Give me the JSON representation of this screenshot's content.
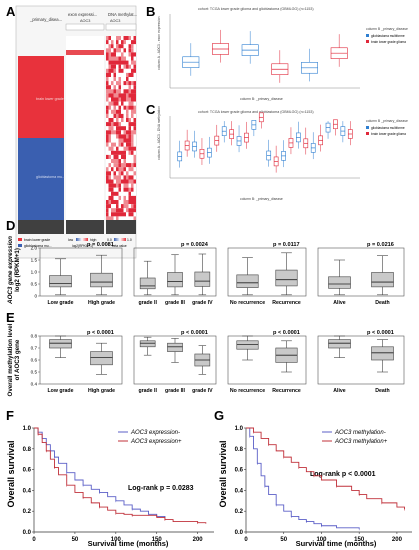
{
  "panels": {
    "A": {
      "letter": "A",
      "col_headers": [
        "_primary_disea...",
        "exon expressi...",
        "DNA methylat..."
      ],
      "gene": "AOC3",
      "group_labels": [
        "brain lower grade...",
        "glioblastoma mu..."
      ],
      "legend_items": [
        "brain lower grade",
        "glioblastoma mu..."
      ],
      "scale_expr": {
        "low": "low",
        "high": "high",
        "unit": "log2(RPKM+1)"
      },
      "scale_meth": {
        "min": "0.0",
        "max": "1.0",
        "unit": "beta value"
      },
      "colors": {
        "lgg": "#e8323c",
        "gbm": "#3a5fb0",
        "meth_high": "#e0283a",
        "meth_low": "#f4c2c5",
        "none": "#404040"
      }
    },
    "B": {
      "letter": "B",
      "title": "cohort: TCGA lower grade glioma and glioblastoma (GBMLGG) (n=1153)",
      "ylabel": "column A - AOC3 - exon expression",
      "xlabel": "column B: _primary_disease",
      "legend_title": "column B _primary_disease",
      "legend": [
        "glioblastoma multiforme",
        "brain lower grade glioma"
      ]
    },
    "C": {
      "letter": "C",
      "title": "cohort: TCGA lower grade glioma and glioblastoma (GBMLGG) (n=1153)",
      "ylabel": "column A - AOC3 - DNA methylation",
      "xlabel": "column B: _primary_disease",
      "legend_title": "column B _primary_disease",
      "legend": [
        "glioblastoma multiforme",
        "brain lower grade glioma"
      ]
    },
    "D": {
      "letter": "D",
      "ylabel": [
        "AOC3 gene expression",
        "log2 (RPKM+1)"
      ],
      "yticks": [
        "0",
        "0.5",
        "1.0",
        "1.5",
        "2.0"
      ],
      "subplots": [
        {
          "categories": [
            "Low grade",
            "High grade"
          ],
          "p": "p = 0.0081"
        },
        {
          "categories": [
            "grade II",
            "grade III",
            "grade IV"
          ],
          "p": "p = 0.0024"
        },
        {
          "categories": [
            "No recurrence",
            "Recurrence"
          ],
          "p": "p = 0.0117"
        },
        {
          "categories": [
            "Alive",
            "Death"
          ],
          "p": "p = 0.0216"
        }
      ]
    },
    "E": {
      "letter": "E",
      "ylabel": [
        "Overall methylation level",
        "of AOC3 gene"
      ],
      "yticks": [
        "0.4",
        "0.5",
        "0.6",
        "0.7",
        "0.8"
      ],
      "subplots": [
        {
          "categories": [
            "Low grade",
            "High grade"
          ],
          "p": "p < 0.0001"
        },
        {
          "categories": [
            "grade II",
            "grade III",
            "grade IV"
          ],
          "p": "p < 0.0001"
        },
        {
          "categories": [
            "No recurrence",
            "Recurrence"
          ],
          "p": "p < 0.0001"
        },
        {
          "categories": [
            "Alive",
            "Death"
          ],
          "p": "p < 0.0001"
        }
      ]
    },
    "F": {
      "letter": "F",
      "ylabel": "Overall survival",
      "xlabel": "Survival time (months)",
      "xticks": [
        "0",
        "50",
        "100",
        "150",
        "200"
      ],
      "yticks": [
        "0.0",
        "0.2",
        "0.4",
        "0.6",
        "0.8",
        "1.0"
      ],
      "legend": [
        "AOC3 expression-",
        "AOC3 expression+"
      ],
      "logrank": "Log-rank p = 0.0283"
    },
    "G": {
      "letter": "G",
      "ylabel": "Overall survival",
      "xlabel": "Survival time (months)",
      "xticks": [
        "0",
        "50",
        "100",
        "150",
        "200"
      ],
      "yticks": [
        "0.0",
        "0.2",
        "0.4",
        "0.6",
        "0.8",
        "1.0"
      ],
      "legend": [
        "AOC3 methylation-",
        "AOC3 methylation+"
      ],
      "logrank": "Log-rank p < 0.0001"
    }
  },
  "chart_data": [
    {
      "type": "box",
      "panel": "D1",
      "categories": [
        "Low grade",
        "High grade"
      ],
      "boxes": [
        {
          "min": 0.05,
          "q1": 0.38,
          "median": 0.52,
          "q3": 0.85,
          "max": 1.55
        },
        {
          "min": 0.05,
          "q1": 0.38,
          "median": 0.58,
          "q3": 0.95,
          "max": 1.7
        }
      ],
      "ylim": [
        0,
        2.0
      ]
    },
    {
      "type": "box",
      "panel": "D2",
      "categories": [
        "grade II",
        "grade III",
        "grade IV"
      ],
      "boxes": [
        {
          "min": 0.05,
          "q1": 0.3,
          "median": 0.42,
          "q3": 0.75,
          "max": 1.45
        },
        {
          "min": 0.05,
          "q1": 0.38,
          "median": 0.6,
          "q3": 0.98,
          "max": 1.72
        },
        {
          "min": 0.05,
          "q1": 0.4,
          "median": 0.62,
          "q3": 1.0,
          "max": 1.75
        }
      ],
      "ylim": [
        0,
        2.0
      ]
    },
    {
      "type": "box",
      "panel": "D3",
      "categories": [
        "No recurrence",
        "Recurrence"
      ],
      "boxes": [
        {
          "min": 0.05,
          "q1": 0.35,
          "median": 0.55,
          "q3": 0.88,
          "max": 1.6
        },
        {
          "min": 0.05,
          "q1": 0.42,
          "median": 0.68,
          "q3": 1.08,
          "max": 1.8
        }
      ],
      "ylim": [
        0,
        2.0
      ]
    },
    {
      "type": "box",
      "panel": "D4",
      "categories": [
        "Alive",
        "Death"
      ],
      "boxes": [
        {
          "min": 0.05,
          "q1": 0.32,
          "median": 0.5,
          "q3": 0.8,
          "max": 1.5
        },
        {
          "min": 0.05,
          "q1": 0.38,
          "median": 0.58,
          "q3": 0.98,
          "max": 1.68
        }
      ],
      "ylim": [
        0,
        2.0
      ]
    },
    {
      "type": "box",
      "panel": "E1",
      "categories": [
        "Low grade",
        "High grade"
      ],
      "boxes": [
        {
          "min": 0.62,
          "q1": 0.7,
          "median": 0.74,
          "q3": 0.77,
          "max": 0.8
        },
        {
          "min": 0.48,
          "q1": 0.56,
          "median": 0.62,
          "q3": 0.67,
          "max": 0.74
        }
      ],
      "ylim": [
        0.4,
        0.8
      ]
    },
    {
      "type": "box",
      "panel": "E2",
      "categories": [
        "grade II",
        "grade III",
        "grade IV"
      ],
      "boxes": [
        {
          "min": 0.64,
          "q1": 0.71,
          "median": 0.74,
          "q3": 0.76,
          "max": 0.79
        },
        {
          "min": 0.58,
          "q1": 0.67,
          "median": 0.71,
          "q3": 0.74,
          "max": 0.78
        },
        {
          "min": 0.48,
          "q1": 0.55,
          "median": 0.6,
          "q3": 0.65,
          "max": 0.72
        }
      ],
      "ylim": [
        0.4,
        0.8
      ]
    },
    {
      "type": "box",
      "panel": "E3",
      "categories": [
        "No recurrence",
        "Recurrence"
      ],
      "boxes": [
        {
          "min": 0.6,
          "q1": 0.69,
          "median": 0.73,
          "q3": 0.76,
          "max": 0.8
        },
        {
          "min": 0.5,
          "q1": 0.58,
          "median": 0.64,
          "q3": 0.7,
          "max": 0.76
        }
      ],
      "ylim": [
        0.4,
        0.8
      ]
    },
    {
      "type": "box",
      "panel": "E4",
      "categories": [
        "Alive",
        "Death"
      ],
      "boxes": [
        {
          "min": 0.62,
          "q1": 0.7,
          "median": 0.74,
          "q3": 0.77,
          "max": 0.8
        },
        {
          "min": 0.5,
          "q1": 0.6,
          "median": 0.66,
          "q3": 0.71,
          "max": 0.77
        }
      ],
      "ylim": [
        0.4,
        0.8
      ]
    },
    {
      "type": "line",
      "panel": "F",
      "xlim": [
        0,
        220
      ],
      "ylim": [
        0,
        1.0
      ],
      "series": [
        {
          "name": "AOC3 expression-",
          "color": "#5b5fc7",
          "x": [
            0,
            5,
            10,
            15,
            20,
            25,
            30,
            40,
            50,
            60,
            70,
            80,
            90,
            100,
            110,
            120,
            130,
            140,
            150,
            160
          ],
          "y": [
            1.0,
            0.96,
            0.9,
            0.84,
            0.78,
            0.72,
            0.66,
            0.57,
            0.5,
            0.45,
            0.41,
            0.38,
            0.34,
            0.3,
            0.26,
            0.22,
            0.2,
            0.17,
            0.15,
            0.14
          ]
        },
        {
          "name": "AOC3 expression+",
          "color": "#c0303a",
          "x": [
            0,
            5,
            10,
            15,
            20,
            25,
            30,
            40,
            50,
            60,
            70,
            80,
            90,
            100,
            110,
            120,
            150,
            160,
            170,
            200,
            210
          ],
          "y": [
            1.0,
            0.94,
            0.86,
            0.78,
            0.7,
            0.62,
            0.55,
            0.45,
            0.38,
            0.33,
            0.28,
            0.24,
            0.21,
            0.18,
            0.17,
            0.16,
            0.14,
            0.12,
            0.1,
            0.09,
            0.08
          ]
        }
      ]
    },
    {
      "type": "line",
      "panel": "G",
      "xlim": [
        0,
        220
      ],
      "ylim": [
        0,
        1.0
      ],
      "series": [
        {
          "name": "AOC3 methylation-",
          "color": "#5b5fc7",
          "x": [
            0,
            5,
            10,
            15,
            20,
            25,
            30,
            40,
            50,
            60,
            70,
            80,
            90,
            100,
            120,
            150
          ],
          "y": [
            1.0,
            0.92,
            0.8,
            0.66,
            0.54,
            0.44,
            0.36,
            0.26,
            0.2,
            0.15,
            0.12,
            0.1,
            0.08,
            0.06,
            0.04,
            0.03
          ]
        },
        {
          "name": "AOC3 methylation+",
          "color": "#c0303a",
          "x": [
            0,
            10,
            20,
            30,
            40,
            50,
            60,
            70,
            80,
            90,
            100,
            120,
            140,
            150,
            160,
            180,
            200,
            210
          ],
          "y": [
            1.0,
            0.96,
            0.9,
            0.84,
            0.78,
            0.72,
            0.67,
            0.62,
            0.58,
            0.54,
            0.5,
            0.44,
            0.4,
            0.36,
            0.32,
            0.28,
            0.24,
            0.22
          ]
        }
      ]
    }
  ]
}
